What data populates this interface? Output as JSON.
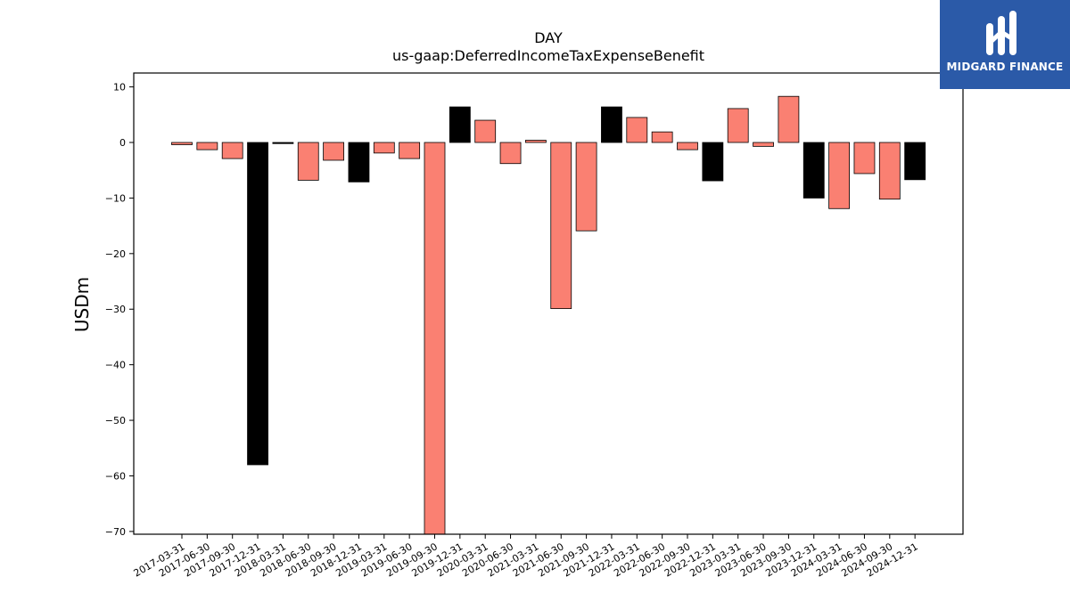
{
  "brand": {
    "name": "MIDGARD FINANCE",
    "bg_color": "#2b5aa8",
    "logo_icon": "midgard-logo-icon"
  },
  "chart_data": {
    "type": "bar",
    "title": "DAY",
    "subtitle": "us-gaap:DeferredIncomeTaxExpenseBenefit",
    "xlabel": "",
    "ylabel": "USDm",
    "ylim": [
      -70.5,
      12.5
    ],
    "yticks": [
      10,
      0,
      -10,
      -20,
      -30,
      -40,
      -50,
      -60,
      -70
    ],
    "grid": false,
    "colors": {
      "quarterly": "#fa8072",
      "annual": "#000000"
    },
    "categories": [
      "2017-03-31",
      "2017-06-30",
      "2017-09-30",
      "2017-12-31",
      "2018-03-31",
      "2018-06-30",
      "2018-09-30",
      "2018-12-31",
      "2019-03-31",
      "2019-06-30",
      "2019-09-30",
      "2019-12-31",
      "2020-03-31",
      "2020-06-30",
      "2021-03-31",
      "2021-06-30",
      "2021-09-30",
      "2021-12-31",
      "2022-03-31",
      "2022-06-30",
      "2022-09-30",
      "2022-12-31",
      "2023-03-31",
      "2023-06-30",
      "2023-09-30",
      "2023-12-31",
      "2024-03-31",
      "2024-06-30",
      "2024-09-30",
      "2024-12-31"
    ],
    "values": [
      -0.4,
      -1.3,
      -2.9,
      -58.0,
      -0.2,
      -6.8,
      -3.2,
      -7.1,
      -1.9,
      -2.9,
      -72.0,
      6.4,
      4.0,
      -3.8,
      0.4,
      -29.9,
      -15.9,
      6.4,
      4.5,
      1.9,
      -1.3,
      -6.9,
      6.1,
      -0.7,
      8.3,
      -10.0,
      -11.9,
      -5.6,
      -10.2,
      -6.7
    ],
    "bar_color_keys": [
      "quarterly",
      "quarterly",
      "quarterly",
      "annual",
      "annual",
      "quarterly",
      "quarterly",
      "annual",
      "quarterly",
      "quarterly",
      "quarterly",
      "annual",
      "quarterly",
      "quarterly",
      "quarterly",
      "quarterly",
      "quarterly",
      "annual",
      "quarterly",
      "quarterly",
      "quarterly",
      "annual",
      "quarterly",
      "quarterly",
      "quarterly",
      "annual",
      "quarterly",
      "quarterly",
      "quarterly",
      "annual"
    ]
  }
}
